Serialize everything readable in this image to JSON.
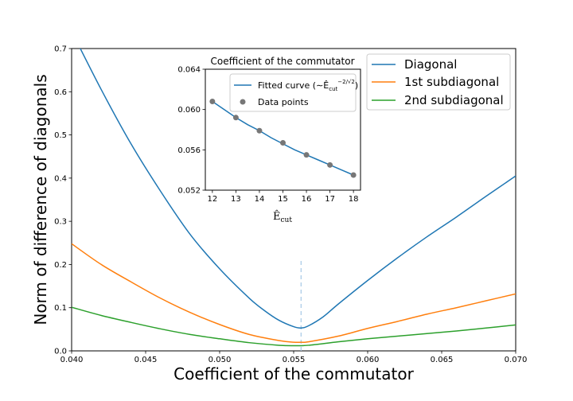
{
  "chart_data": [
    {
      "type": "line",
      "title": "",
      "xlabel": "Coefficient of the commutator",
      "ylabel": "Norm of difference of diagonals",
      "xlim": [
        0.04,
        0.07
      ],
      "ylim": [
        0.0,
        0.7
      ],
      "xticks": [
        "0.040",
        "0.045",
        "0.050",
        "0.055",
        "0.060",
        "0.065",
        "0.070"
      ],
      "yticks": [
        "0.0",
        "0.1",
        "0.2",
        "0.3",
        "0.4",
        "0.5",
        "0.6",
        "0.7"
      ],
      "grid": false,
      "legend_position": "top-right",
      "vline": {
        "x": 0.0555,
        "y_range": [
          0.0,
          0.21
        ],
        "style": "dashed",
        "color": "#a6c8e6"
      },
      "series": [
        {
          "name": "Diagonal",
          "color": "#1f77b4",
          "x": [
            0.04,
            0.042,
            0.044,
            0.046,
            0.048,
            0.05,
            0.052,
            0.053,
            0.054,
            0.055,
            0.0555,
            0.056,
            0.057,
            0.058,
            0.06,
            0.062,
            0.064,
            0.066,
            0.068,
            0.07
          ],
          "y": [
            0.74,
            0.605,
            0.48,
            0.37,
            0.27,
            0.19,
            0.122,
            0.094,
            0.071,
            0.056,
            0.053,
            0.058,
            0.079,
            0.108,
            0.163,
            0.215,
            0.264,
            0.31,
            0.358,
            0.405
          ]
        },
        {
          "name": "1st subdiagonal",
          "color": "#ff7f0e",
          "x": [
            0.04,
            0.042,
            0.044,
            0.046,
            0.048,
            0.05,
            0.052,
            0.054,
            0.055,
            0.0555,
            0.056,
            0.058,
            0.06,
            0.062,
            0.064,
            0.066,
            0.068,
            0.07
          ],
          "y": [
            0.248,
            0.2,
            0.16,
            0.122,
            0.089,
            0.061,
            0.038,
            0.024,
            0.02,
            0.02,
            0.021,
            0.034,
            0.052,
            0.068,
            0.085,
            0.1,
            0.116,
            0.132
          ]
        },
        {
          "name": "2nd subdiagonal",
          "color": "#2ca02c",
          "x": [
            0.04,
            0.042,
            0.044,
            0.046,
            0.048,
            0.05,
            0.052,
            0.054,
            0.055,
            0.056,
            0.058,
            0.06,
            0.062,
            0.064,
            0.066,
            0.068,
            0.07
          ],
          "y": [
            0.101,
            0.082,
            0.066,
            0.051,
            0.038,
            0.028,
            0.019,
            0.013,
            0.012,
            0.013,
            0.021,
            0.028,
            0.034,
            0.04,
            0.046,
            0.053,
            0.06
          ]
        }
      ]
    },
    {
      "type": "scatter",
      "title": "Coefficient of the commutator",
      "xlabel": "Ê_cut",
      "ylabel": "",
      "xlim": [
        11.7,
        18.3
      ],
      "ylim": [
        0.052,
        0.064
      ],
      "xticks": [
        "12",
        "13",
        "14",
        "15",
        "16",
        "17",
        "18"
      ],
      "yticks": [
        "0.052",
        "0.056",
        "0.060",
        "0.064"
      ],
      "grid": false,
      "legend_position": "top-right",
      "series": [
        {
          "name": "Fitted curve (∼Ê_cut^(−2/√2))",
          "kind": "line",
          "color": "#1f77b4",
          "x": [
            12,
            12.5,
            13,
            13.5,
            14,
            14.5,
            15,
            15.5,
            16,
            16.5,
            17,
            17.5,
            18
          ],
          "y": [
            0.0608,
            0.06,
            0.0592,
            0.0585,
            0.0579,
            0.0572,
            0.0566,
            0.056,
            0.0555,
            0.055,
            0.0545,
            0.054,
            0.0535
          ]
        },
        {
          "name": "Data points",
          "kind": "scatter",
          "color": "#777777",
          "x": [
            12,
            13,
            14,
            15,
            16,
            17,
            18
          ],
          "y": [
            0.0608,
            0.0592,
            0.0579,
            0.0567,
            0.0555,
            0.0545,
            0.0535
          ]
        }
      ]
    }
  ],
  "legend_main": {
    "labels": [
      "Diagonal",
      "1st subdiagonal",
      "2nd subdiagonal"
    ]
  },
  "legend_inset": {
    "fitted_prefix": "Fitted curve (",
    "fitted_expr": "∼Ê",
    "fitted_sub": "cut",
    "fitted_sup": "−2/√2",
    "fitted_suffix": ")",
    "points_label": "Data points"
  },
  "inset_xlabel_parts": {
    "base": "Ê",
    "sub": "cut"
  }
}
